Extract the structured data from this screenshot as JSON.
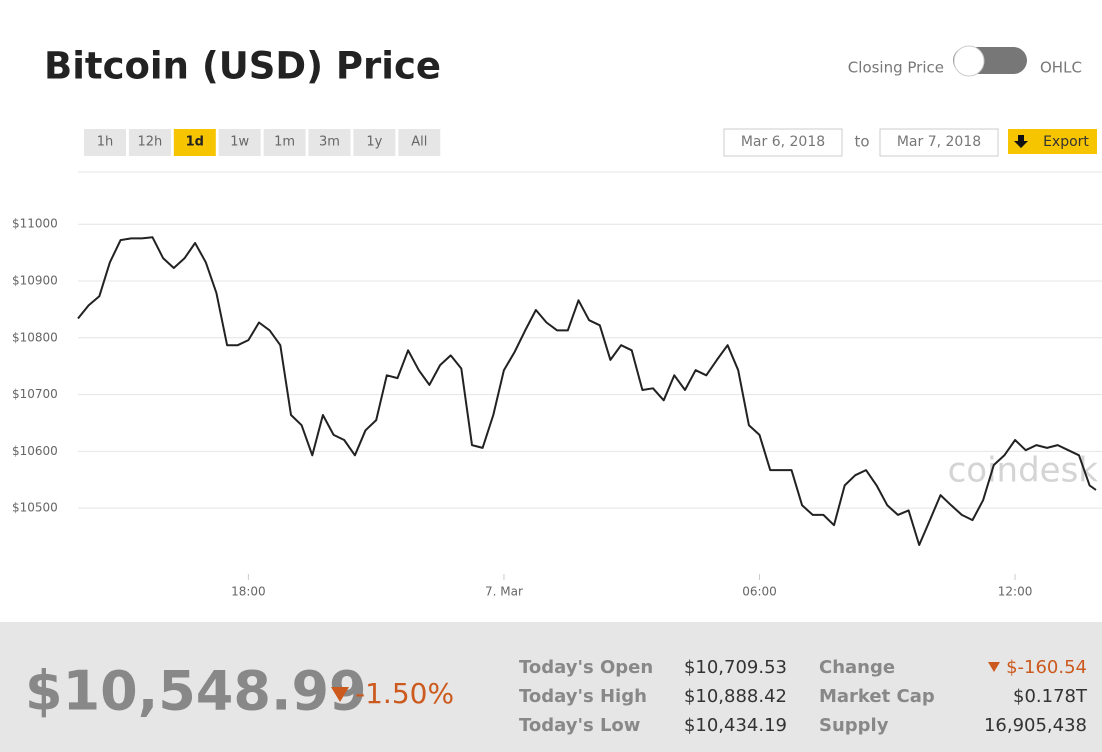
{
  "title": "Bitcoin (USD) Price",
  "toggle": {
    "left": "Closing Price",
    "right": "OHLC"
  },
  "ranges": [
    "1h",
    "12h",
    "1d",
    "1w",
    "1m",
    "3m",
    "1y",
    "All"
  ],
  "active_range": "1d",
  "date_from": "Mar 6, 2018",
  "date_sep": "to",
  "date_to": "Mar 7, 2018",
  "export": "Export",
  "watermark": "coindesk",
  "chart_data": {
    "type": "line",
    "color": "#222222",
    "x": [
      14,
      14.25,
      14.5,
      14.75,
      15,
      15.25,
      15.5,
      15.75,
      16,
      16.25,
      16.5,
      16.75,
      17,
      17.25,
      17.5,
      17.75,
      18,
      18.25,
      18.5,
      18.75,
      19,
      19.25,
      19.5,
      19.75,
      20,
      20.25,
      20.5,
      20.75,
      21,
      21.25,
      21.5,
      21.75,
      22,
      22.25,
      22.5,
      22.75,
      23,
      23.25,
      23.5,
      23.75,
      24,
      24.25,
      24.5,
      24.75,
      25,
      25.25,
      25.5,
      25.75,
      26,
      26.25,
      26.5,
      26.75,
      27,
      27.25,
      27.5,
      27.75,
      28,
      28.25,
      28.5,
      28.75,
      29,
      29.25,
      29.5,
      29.75,
      30,
      30.25,
      30.5,
      30.75,
      31,
      31.25,
      31.5,
      31.75,
      32,
      32.25,
      32.5,
      32.75,
      33,
      33.25,
      33.5,
      33.75,
      34,
      34.25,
      34.5,
      34.75,
      35,
      35.25,
      35.5,
      35.75,
      36,
      36.25,
      36.5,
      36.75,
      37,
      37.25,
      37.5,
      37.75,
      37.9
    ],
    "values": [
      10834,
      10857,
      10873,
      10933,
      10972,
      10975,
      10975,
      10977,
      10940,
      10923,
      10940,
      10967,
      10933,
      10879,
      10787,
      10787,
      10796,
      10827,
      10813,
      10787,
      10664,
      10646,
      10593,
      10664,
      10629,
      10620,
      10593,
      10637,
      10655,
      10734,
      10729,
      10778,
      10743,
      10717,
      10752,
      10769,
      10746,
      10611,
      10606,
      10664,
      10743,
      10775,
      10813,
      10849,
      10827,
      10813,
      10813,
      10866,
      10831,
      10822,
      10761,
      10787,
      10778,
      10708,
      10711,
      10690,
      10734,
      10708,
      10743,
      10734,
      10761,
      10787,
      10743,
      10646,
      10629,
      10567,
      10567,
      10567,
      10505,
      10488,
      10488,
      10470,
      10540,
      10558,
      10567,
      10540,
      10505,
      10488,
      10496,
      10435,
      10479,
      10523,
      10505,
      10488,
      10479,
      10514,
      10576,
      10593,
      10620,
      10602,
      10611,
      10606,
      10611,
      10602,
      10593,
      10540,
      10532
    ],
    "xlim": [
      14,
      37.9
    ],
    "xticks": [
      {
        "value": 18,
        "label": "18:00"
      },
      {
        "value": 24,
        "label": "7. Mar"
      },
      {
        "value": 30,
        "label": "06:00"
      },
      {
        "value": 36,
        "label": "12:00"
      }
    ],
    "ylim": [
      10384,
      11092
    ],
    "yticks": [
      {
        "value": 10500,
        "label": "$10500"
      },
      {
        "value": 10600,
        "label": "$10600"
      },
      {
        "value": 10700,
        "label": "$10700"
      },
      {
        "value": 10800,
        "label": "$10800"
      },
      {
        "value": 10900,
        "label": "$10900"
      },
      {
        "value": 11000,
        "label": "$11000"
      }
    ],
    "grid": true
  },
  "summary": {
    "price": "$10,548.99",
    "change_pct": "-1.50%",
    "stats": [
      {
        "label": "Today's Open",
        "value": "$10,709.53"
      },
      {
        "label": "Today's High",
        "value": "$10,888.42"
      },
      {
        "label": "Today's Low",
        "value": "$10,434.19"
      },
      {
        "label": "Change",
        "value": "$-160.54"
      },
      {
        "label": "Market Cap",
        "value": "$0.178T"
      },
      {
        "label": "Supply",
        "value": "16,905,438"
      }
    ]
  }
}
